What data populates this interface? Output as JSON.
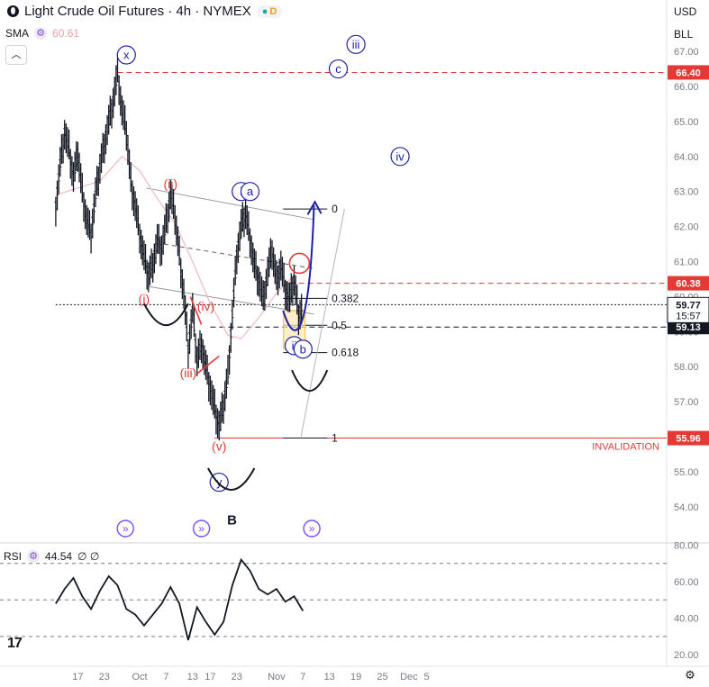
{
  "header": {
    "symbol_title": "Light Crude Oil Futures · 4h · NYMEX",
    "badge_dot": "●",
    "badge_letter": "D",
    "indicator_name": "SMA",
    "indicator_value": "60.61",
    "rsi_name": "RSI",
    "rsi_value": "44.54",
    "rsi_extra": "∅ ∅",
    "currency": "USD",
    "unit": "BLL",
    "collapse_label": "︿"
  },
  "colors": {
    "candle": "#131722",
    "sma": "#f2b8bf",
    "red": "#e53935",
    "blue": "#1e22aa",
    "purple": "#7c4dff",
    "grey": "#9598a1"
  },
  "chart_data": {
    "type": "line",
    "title": "Light Crude Oil Futures · 4h · NYMEX",
    "ylim": [
      53.3,
      67.3
    ],
    "y_ticks": [
      54.0,
      55.0,
      56.0,
      57.0,
      58.0,
      59.0,
      60.0,
      61.0,
      62.0,
      63.0,
      64.0,
      65.0,
      66.0,
      67.0
    ],
    "x_ticks": [
      "17",
      "23",
      "Oct",
      "7",
      "13",
      "17",
      "23",
      "Nov",
      "7",
      "13",
      "19",
      "25",
      "Dec",
      "5"
    ],
    "x_tick_days": [
      -14,
      -8,
      0,
      6,
      12,
      16,
      22,
      31,
      37,
      43,
      49,
      55,
      61,
      65
    ],
    "price_path": [
      [
        -19,
        62.6
      ],
      [
        -18,
        63.8
      ],
      [
        -17,
        64.7
      ],
      [
        -16,
        64.2
      ],
      [
        -15,
        63.4
      ],
      [
        -14,
        64.1
      ],
      [
        -13,
        63.0
      ],
      [
        -12,
        62.2
      ],
      [
        -11,
        61.8
      ],
      [
        -10,
        62.9
      ],
      [
        -9,
        63.7
      ],
      [
        -8,
        64.4
      ],
      [
        -7,
        65.0
      ],
      [
        -6,
        65.6
      ],
      [
        -5,
        66.4
      ],
      [
        -4,
        65.3
      ],
      [
        -3,
        64.7
      ],
      [
        -2,
        63.3
      ],
      [
        -1,
        62.6
      ],
      [
        0,
        61.8
      ],
      [
        1,
        61.1
      ],
      [
        2,
        60.6
      ],
      [
        3,
        61.0
      ],
      [
        4,
        61.6
      ],
      [
        5,
        61.4
      ],
      [
        6,
        62.1
      ],
      [
        7,
        62.9
      ],
      [
        8,
        62.3
      ],
      [
        9,
        61.2
      ],
      [
        10,
        60.1
      ],
      [
        11,
        58.5
      ],
      [
        12,
        59.6
      ],
      [
        13,
        58.2
      ],
      [
        14,
        58.7
      ],
      [
        15,
        58.0
      ],
      [
        16,
        57.4
      ],
      [
        17,
        56.8
      ],
      [
        18,
        56.3
      ],
      [
        19,
        56.9
      ],
      [
        20,
        57.8
      ],
      [
        21,
        59.5
      ],
      [
        22,
        61.2
      ],
      [
        23,
        62.0
      ],
      [
        24,
        62.4
      ],
      [
        25,
        61.7
      ],
      [
        26,
        60.9
      ],
      [
        27,
        60.5
      ],
      [
        28,
        59.9
      ],
      [
        29,
        60.7
      ],
      [
        30,
        61.3
      ],
      [
        31,
        60.5
      ],
      [
        32,
        60.9
      ],
      [
        33,
        60.2
      ],
      [
        34,
        59.9
      ],
      [
        35,
        60.5
      ],
      [
        36,
        59.5
      ],
      [
        37,
        59.8
      ]
    ],
    "sma_path": [
      [
        -19,
        62.9
      ],
      [
        -14,
        63.1
      ],
      [
        -9,
        63.3
      ],
      [
        -4,
        64.0
      ],
      [
        0,
        63.6
      ],
      [
        4,
        62.8
      ],
      [
        8,
        62.1
      ],
      [
        12,
        61.0
      ],
      [
        16,
        59.8
      ],
      [
        20,
        58.9
      ],
      [
        23,
        58.8
      ],
      [
        27,
        59.4
      ],
      [
        31,
        60.1
      ],
      [
        35,
        60.6
      ]
    ],
    "rsi_ylim": [
      17,
      83
    ],
    "rsi_ticks": [
      20.0,
      40.0,
      60.0,
      80.0
    ],
    "rsi_levels": [
      30,
      50,
      70
    ],
    "rsi_path": [
      [
        -19,
        48
      ],
      [
        -17,
        56
      ],
      [
        -15,
        62
      ],
      [
        -13,
        52
      ],
      [
        -11,
        45
      ],
      [
        -9,
        55
      ],
      [
        -7,
        63
      ],
      [
        -5,
        58
      ],
      [
        -3,
        45
      ],
      [
        -1,
        42
      ],
      [
        1,
        36
      ],
      [
        3,
        42
      ],
      [
        5,
        48
      ],
      [
        7,
        57
      ],
      [
        9,
        48
      ],
      [
        11,
        28
      ],
      [
        13,
        46
      ],
      [
        15,
        38
      ],
      [
        17,
        31
      ],
      [
        19,
        38
      ],
      [
        21,
        58
      ],
      [
        23,
        72
      ],
      [
        25,
        66
      ],
      [
        27,
        56
      ],
      [
        29,
        53
      ],
      [
        31,
        56
      ],
      [
        33,
        49
      ],
      [
        35,
        52
      ],
      [
        37,
        44
      ]
    ],
    "price_label": "59.77",
    "countdown": "15:57",
    "price_boxes": [
      {
        "label": "66.40",
        "value": 66.4,
        "color": "#e53935"
      },
      {
        "label": "60.38",
        "value": 60.38,
        "color": "#e53935"
      },
      {
        "label": "59.13",
        "value": 59.13,
        "color": "#131722"
      },
      {
        "label": "55.96",
        "value": 55.96,
        "color": "#e53935"
      }
    ],
    "hlines": [
      {
        "value": 66.4,
        "style": "dashed",
        "color": "#e53935",
        "from": -5,
        "to": 65
      },
      {
        "value": 60.38,
        "style": "dashed",
        "color": "#e53935",
        "from": 34,
        "to": 65
      },
      {
        "value": 59.13,
        "style": "dashed",
        "color": "#131722",
        "from": 16,
        "to": 65
      },
      {
        "value": 59.77,
        "style": "dotted",
        "color": "#131722",
        "from": -19,
        "to": 65
      },
      {
        "value": 55.96,
        "style": "solid",
        "color": "#e53935",
        "from": 17,
        "to": 65
      }
    ],
    "invalidation_label": "INVALIDATION",
    "fib_levels": [
      {
        "label": "0",
        "value": 62.5
      },
      {
        "label": "0.382",
        "value": 59.95
      },
      {
        "label": "0.5",
        "value": 59.18
      },
      {
        "label": "0.618",
        "value": 58.4
      },
      {
        "label": "1",
        "value": 55.96
      }
    ],
    "wave_labels_red": [
      {
        "text": "(i)",
        "day": 1,
        "value": 59.8
      },
      {
        "text": "(ii)",
        "day": 7,
        "value": 63.1
      },
      {
        "text": "(iii)",
        "day": 11,
        "value": 57.7
      },
      {
        "text": "(iv)",
        "day": 15,
        "value": 59.6
      },
      {
        "text": "(v)",
        "day": 18,
        "value": 55.6
      }
    ],
    "wave_labels_circled": [
      {
        "text": "x",
        "day": -3,
        "value": 66.9
      },
      {
        "text": "iii",
        "day": 49,
        "value": 67.2
      },
      {
        "text": "c",
        "day": 45,
        "value": 66.5
      },
      {
        "text": "iv",
        "day": 59,
        "value": 64.0
      },
      {
        "text": "i",
        "day": 23,
        "value": 63.0
      },
      {
        "text": "a",
        "day": 25,
        "value": 63.0
      },
      {
        "text": "ii",
        "day": 35,
        "value": 58.6
      },
      {
        "text": "b",
        "day": 37,
        "value": 58.5
      },
      {
        "text": "y",
        "day": 18,
        "value": 54.7
      }
    ],
    "b_label": {
      "text": "B",
      "day": 19,
      "value": 53.7
    }
  }
}
